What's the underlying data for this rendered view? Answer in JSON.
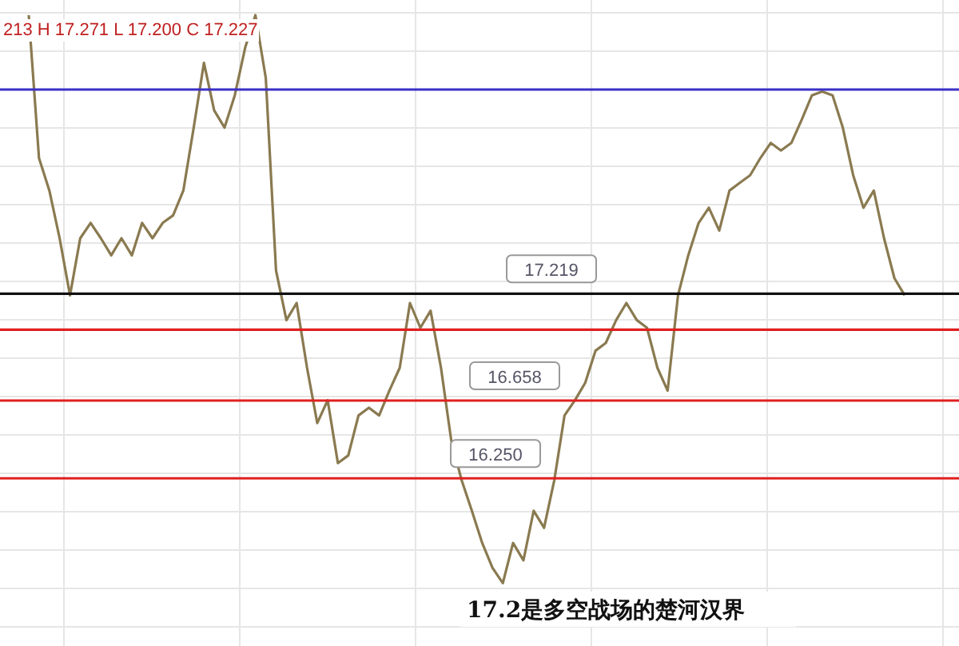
{
  "chart_data": {
    "type": "line",
    "categories": [
      null,
      null,
      null,
      null,
      null,
      null,
      null,
      null,
      null,
      null,
      null,
      null,
      null,
      null,
      null,
      null,
      null,
      null,
      null,
      null,
      null,
      null,
      null,
      null,
      null,
      null,
      null,
      null,
      null,
      null,
      null,
      null,
      null,
      null,
      null,
      null,
      null,
      null,
      null,
      null,
      null,
      null,
      null,
      null,
      null,
      null,
      null,
      null,
      null,
      null,
      null,
      null,
      null,
      null,
      null,
      null,
      null,
      null,
      null,
      null,
      null,
      null,
      null,
      null,
      null,
      null,
      null,
      null,
      null,
      null,
      null,
      null,
      null,
      null,
      null,
      null,
      null,
      null,
      null,
      null,
      null,
      null,
      null,
      null,
      null,
      null
    ],
    "series": [
      {
        "color": "#8a7a50",
        "values": [
          18.68,
          17.93,
          17.76,
          17.51,
          17.21,
          17.51,
          17.59,
          17.51,
          17.42,
          17.51,
          17.42,
          17.59,
          17.51,
          17.59,
          17.63,
          17.76,
          18.09,
          18.43,
          18.18,
          18.09,
          18.26,
          18.51,
          18.68,
          18.35,
          17.34,
          17.08,
          17.17,
          16.83,
          16.54,
          16.66,
          16.33,
          16.37,
          16.58,
          16.62,
          16.58,
          16.71,
          16.83,
          17.17,
          17.04,
          17.13,
          16.83,
          16.45,
          16.24,
          16.08,
          15.91,
          15.78,
          15.7,
          15.91,
          15.82,
          16.08,
          15.99,
          16.24,
          16.58,
          16.66,
          16.75,
          16.92,
          16.96,
          17.08,
          17.17,
          17.08,
          17.04,
          16.83,
          16.71,
          17.21,
          17.42,
          17.59,
          17.67,
          17.55,
          17.76,
          17.8,
          17.84,
          17.93,
          18.01,
          17.97,
          18.01,
          18.13,
          18.26,
          18.28,
          18.26,
          18.09,
          17.84,
          17.67,
          17.76,
          17.51,
          17.3,
          17.21
        ]
      }
    ],
    "ylim": [
      15.37,
      18.76
    ],
    "grid": true,
    "ref_lines": [
      {
        "axis": "y",
        "value": 18.29,
        "color": "#3a2fc8"
      },
      {
        "axis": "y",
        "value": 17.219,
        "label": "17.219",
        "color": "#111111"
      },
      {
        "axis": "y",
        "value": 17.03,
        "color": "#e02020"
      },
      {
        "axis": "y",
        "value": 16.658,
        "label": "16.658",
        "color": "#e02020"
      },
      {
        "axis": "y",
        "value": 16.25,
        "label": "16.250",
        "color": "#e02020"
      }
    ],
    "annotations": [
      "213 H 17.271 L 17.200 C 17.227",
      "17.2是多空战场的楚河汉界"
    ]
  }
}
